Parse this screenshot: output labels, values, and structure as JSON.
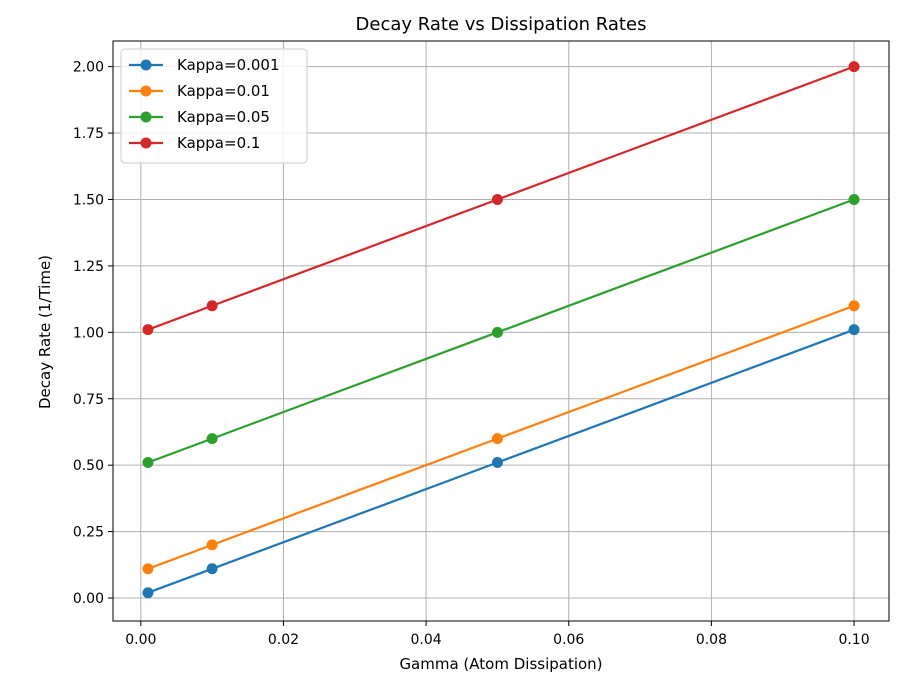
{
  "chart_data": {
    "type": "line",
    "title": "Decay Rate vs Dissipation Rates",
    "xlabel": "Gamma (Atom Dissipation)",
    "ylabel": "Decay Rate (1/Time)",
    "xlim": [
      -0.0039,
      0.1049
    ],
    "ylim": [
      -0.0865,
      2.0965
    ],
    "x": [
      0.001,
      0.01,
      0.05,
      0.1
    ],
    "xticks": [
      0.0,
      0.02,
      0.04,
      0.06,
      0.08,
      0.1
    ],
    "xtick_labels": [
      "0.00",
      "0.02",
      "0.04",
      "0.06",
      "0.08",
      "0.10"
    ],
    "yticks": [
      0.0,
      0.25,
      0.5,
      0.75,
      1.0,
      1.25,
      1.5,
      1.75,
      2.0
    ],
    "ytick_labels": [
      "0.00",
      "0.25",
      "0.50",
      "0.75",
      "1.00",
      "1.25",
      "1.50",
      "1.75",
      "2.00"
    ],
    "grid": true,
    "legend_position": "top-left",
    "series": [
      {
        "name": "Kappa=0.001",
        "color": "#1f77b4",
        "values": [
          0.02,
          0.11,
          0.51,
          1.01
        ]
      },
      {
        "name": "Kappa=0.01",
        "color": "#ff7f0e",
        "values": [
          0.11,
          0.2,
          0.6,
          1.1
        ]
      },
      {
        "name": "Kappa=0.05",
        "color": "#2ca02c",
        "values": [
          0.51,
          0.6,
          1.0,
          1.5
        ]
      },
      {
        "name": "Kappa=0.1",
        "color": "#d62728",
        "values": [
          1.01,
          1.1,
          1.5,
          2.0
        ]
      }
    ]
  }
}
